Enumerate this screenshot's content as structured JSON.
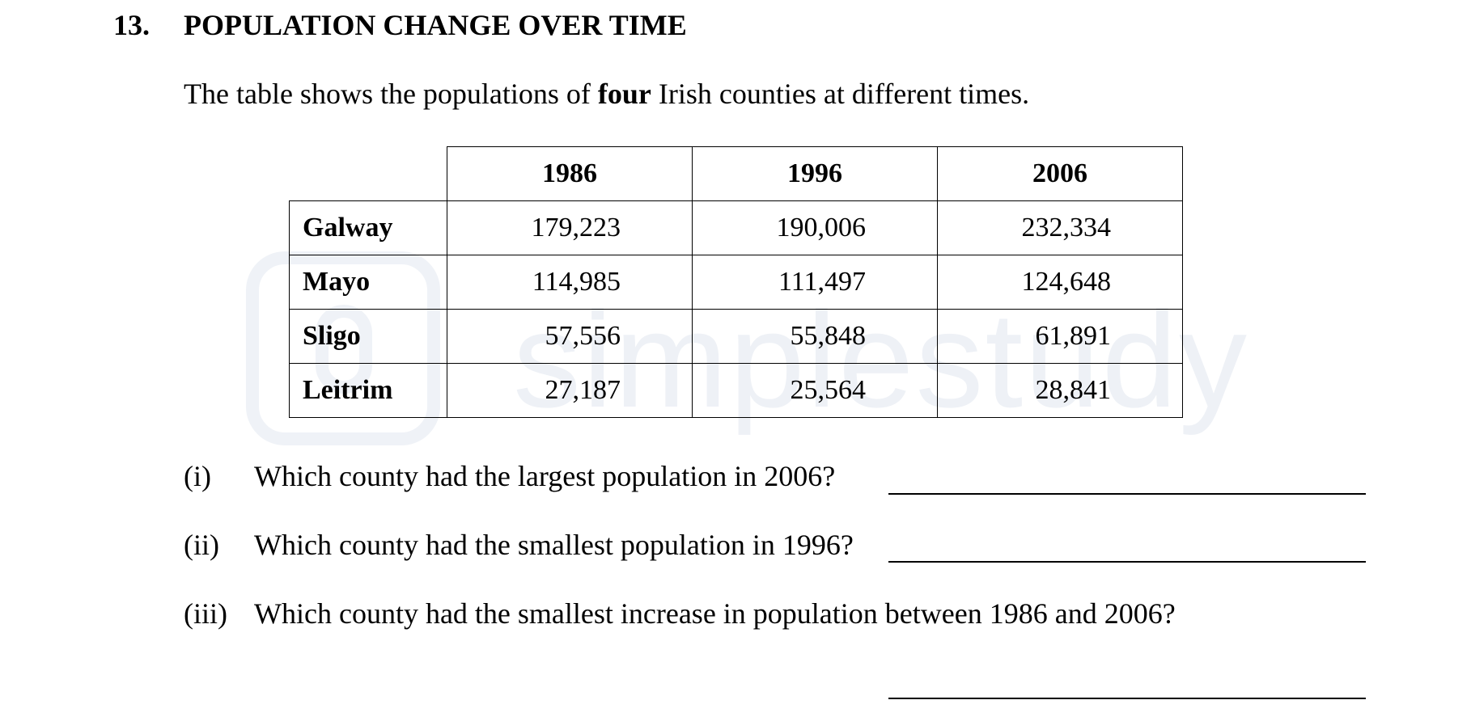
{
  "question": {
    "number": "13.",
    "title": "POPULATION CHANGE OVER TIME",
    "intro": {
      "before": "The table shows the populations of ",
      "bold": "four",
      "after": " Irish counties at different times."
    }
  },
  "watermark": {
    "text": "simplestudy",
    "icon": "simplestudy-logo-icon"
  },
  "table": {
    "headers": [
      "1986",
      "1996",
      "2006"
    ],
    "rows": [
      {
        "county": "Galway",
        "values": [
          "179,223",
          "190,006",
          "232,334"
        ]
      },
      {
        "county": "Mayo",
        "values": [
          "114,985",
          "111,497",
          "124,648"
        ]
      },
      {
        "county": "Sligo",
        "values": [
          "57,556",
          "55,848",
          "61,891"
        ]
      },
      {
        "county": "Leitrim",
        "values": [
          "27,187",
          "25,564",
          "28,841"
        ]
      }
    ]
  },
  "subquestions": [
    {
      "label": "(i)",
      "text": "Which county had the largest population in 2006?"
    },
    {
      "label": "(ii)",
      "text": "Which county had the smallest population in 1996?"
    },
    {
      "label": "(iii)",
      "text": "Which county had the smallest increase in population between 1986 and 2006?"
    }
  ]
}
